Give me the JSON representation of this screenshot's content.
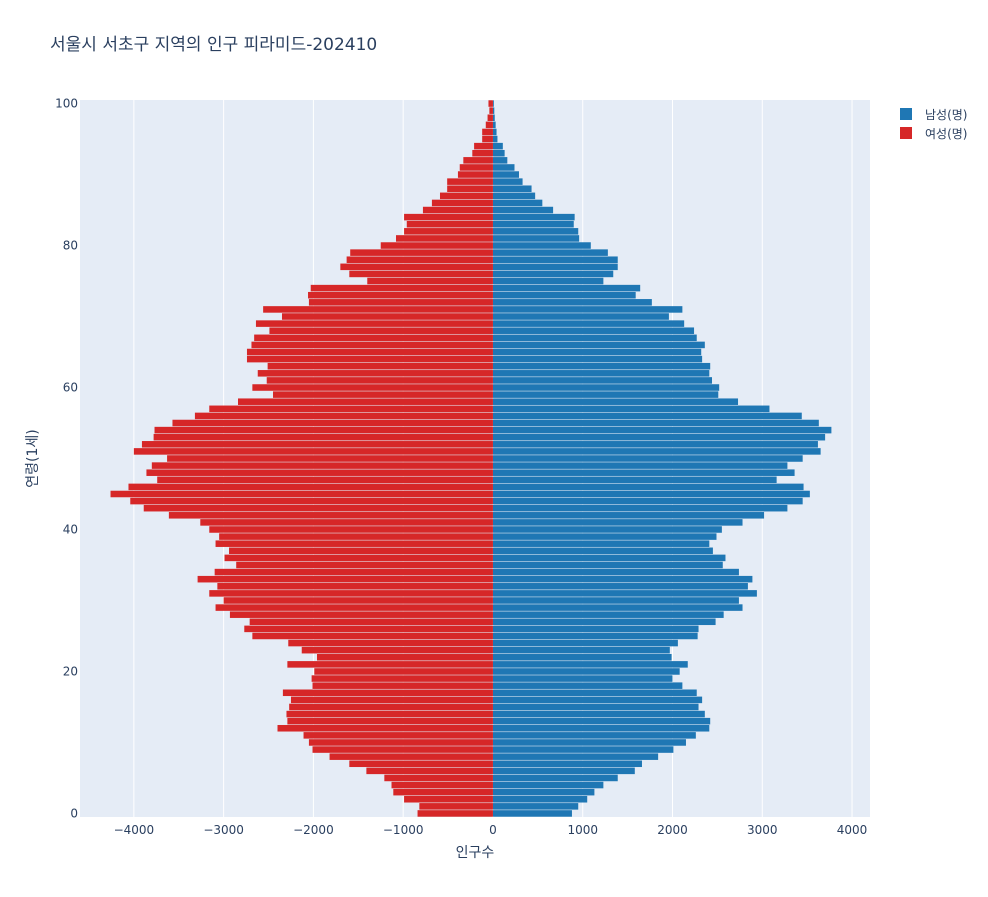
{
  "chart_data": {
    "type": "bar",
    "orientation": "horizontal",
    "title": "서울시 서초구 지역의 인구 피라미드-202410",
    "xlabel": "인구수",
    "ylabel": "연령(1세)",
    "xlim": [
      -4600,
      4200
    ],
    "ylim": [
      -0.5,
      100.5
    ],
    "xticks": [
      -4000,
      -3000,
      -2000,
      -1000,
      0,
      1000,
      2000,
      3000,
      4000
    ],
    "xtick_labels": [
      "−4000",
      "−3000",
      "−2000",
      "−1000",
      "0",
      "1000",
      "2000",
      "3000",
      "4000"
    ],
    "yticks": [
      0,
      20,
      40,
      60,
      80,
      100
    ],
    "ytick_labels": [
      "0",
      "20",
      "40",
      "60",
      "80",
      "100"
    ],
    "legend_position": "top-right",
    "ages": [
      0,
      1,
      2,
      3,
      4,
      5,
      6,
      7,
      8,
      9,
      10,
      11,
      12,
      13,
      14,
      15,
      16,
      17,
      18,
      19,
      20,
      21,
      22,
      23,
      24,
      25,
      26,
      27,
      28,
      29,
      30,
      31,
      32,
      33,
      34,
      35,
      36,
      37,
      38,
      39,
      40,
      41,
      42,
      43,
      44,
      45,
      46,
      47,
      48,
      49,
      50,
      51,
      52,
      53,
      54,
      55,
      56,
      57,
      58,
      59,
      60,
      61,
      62,
      63,
      64,
      65,
      66,
      67,
      68,
      69,
      70,
      71,
      72,
      73,
      74,
      75,
      76,
      77,
      78,
      79,
      80,
      81,
      82,
      83,
      84,
      85,
      86,
      87,
      88,
      89,
      90,
      91,
      92,
      93,
      94,
      95,
      96,
      97,
      98,
      99,
      100
    ],
    "series": [
      {
        "name": "남성(명)",
        "color": "#1f77b4",
        "values": [
          880,
          950,
          1050,
          1130,
          1230,
          1390,
          1580,
          1660,
          1840,
          2010,
          2150,
          2260,
          2410,
          2420,
          2360,
          2290,
          2330,
          2270,
          2110,
          2000,
          2080,
          2170,
          1990,
          1970,
          2060,
          2280,
          2290,
          2480,
          2570,
          2780,
          2740,
          2940,
          2840,
          2890,
          2740,
          2560,
          2590,
          2450,
          2410,
          2490,
          2550,
          2780,
          3020,
          3280,
          3450,
          3530,
          3460,
          3160,
          3360,
          3280,
          3450,
          3650,
          3620,
          3700,
          3770,
          3630,
          3440,
          3080,
          2730,
          2510,
          2520,
          2440,
          2410,
          2420,
          2330,
          2320,
          2360,
          2270,
          2240,
          2130,
          1960,
          2110,
          1770,
          1590,
          1640,
          1230,
          1340,
          1390,
          1390,
          1280,
          1090,
          960,
          950,
          900,
          910,
          670,
          550,
          470,
          430,
          330,
          290,
          240,
          160,
          130,
          110,
          50,
          40,
          30,
          20,
          15,
          10
        ]
      },
      {
        "name": "여성(명)",
        "color": "#d62728",
        "values": [
          -840,
          -820,
          -990,
          -1110,
          -1130,
          -1210,
          -1410,
          -1600,
          -1820,
          -2010,
          -2050,
          -2110,
          -2400,
          -2290,
          -2300,
          -2270,
          -2250,
          -2340,
          -2010,
          -2020,
          -1990,
          -2290,
          -1960,
          -2130,
          -2280,
          -2680,
          -2770,
          -2710,
          -2930,
          -3090,
          -3000,
          -3160,
          -3070,
          -3290,
          -3100,
          -2860,
          -2990,
          -2940,
          -3090,
          -3050,
          -3160,
          -3260,
          -3610,
          -3890,
          -4040,
          -4260,
          -4060,
          -3740,
          -3860,
          -3800,
          -3630,
          -4000,
          -3910,
          -3780,
          -3770,
          -3570,
          -3320,
          -3160,
          -2840,
          -2450,
          -2680,
          -2520,
          -2620,
          -2510,
          -2740,
          -2740,
          -2690,
          -2660,
          -2490,
          -2640,
          -2350,
          -2560,
          -2050,
          -2060,
          -2030,
          -1400,
          -1600,
          -1700,
          -1630,
          -1590,
          -1250,
          -1080,
          -990,
          -960,
          -990,
          -780,
          -680,
          -590,
          -510,
          -510,
          -390,
          -370,
          -330,
          -230,
          -210,
          -120,
          -120,
          -80,
          -60,
          -40,
          -50
        ]
      }
    ]
  }
}
